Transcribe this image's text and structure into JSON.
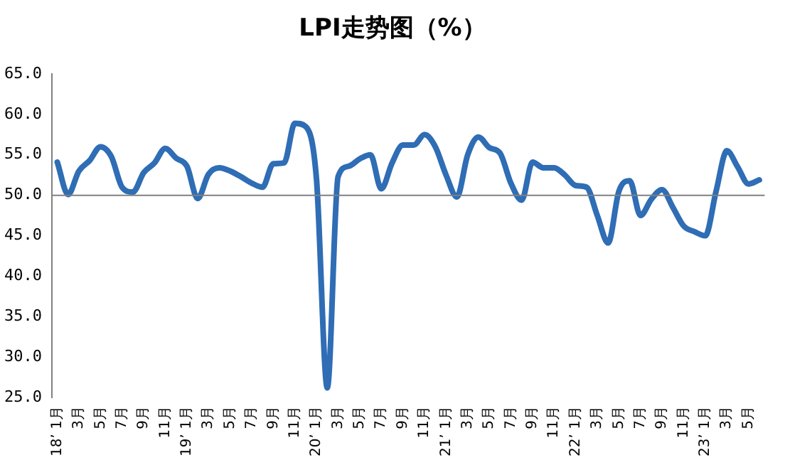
{
  "chart_data": {
    "type": "line",
    "title": "LPI走势图（%）",
    "categories": [
      "18’ 1月",
      null,
      "3月",
      null,
      "5月",
      null,
      "7月",
      null,
      "9月",
      null,
      "11月",
      null,
      "19’ 1月",
      null,
      "3月",
      null,
      "5月",
      null,
      "7月",
      null,
      "9月",
      null,
      "11月",
      null,
      "20’ 1月",
      null,
      "3月",
      null,
      "5月",
      null,
      "7月",
      null,
      "9月",
      null,
      "11月",
      null,
      "21’ 1月",
      null,
      "3月",
      null,
      "5月",
      null,
      "7月",
      null,
      "9月",
      null,
      "11月",
      null,
      "22’ 1月",
      null,
      "3月",
      null,
      "5月",
      null,
      "7月",
      null,
      "9月",
      null,
      "11月",
      null,
      "23’ 1月",
      null,
      "3月",
      null,
      "5月",
      null
    ],
    "series": [
      {
        "color": "#2f6db5",
        "values": [
          54.1,
          50.1,
          53.0,
          54.3,
          56.0,
          54.8,
          51.0,
          50.4,
          52.8,
          54.0,
          55.8,
          54.6,
          53.6,
          49.6,
          52.6,
          53.4,
          53.0,
          52.3,
          51.5,
          51.0,
          53.9,
          54.0,
          58.9,
          58.5,
          52.0,
          26.2,
          52.3,
          53.6,
          54.5,
          55.0,
          50.8,
          54.0,
          56.2,
          56.2,
          57.5,
          56.0,
          52.5,
          49.8,
          55.0,
          57.2,
          55.9,
          55.2,
          51.5,
          49.4,
          54.1,
          53.4,
          53.4,
          52.5,
          51.2,
          51.0,
          47.5,
          44.1,
          50.5,
          51.8,
          47.5,
          49.5,
          50.7,
          48.5,
          46.2,
          45.5,
          45.0,
          50.5,
          55.5,
          53.5,
          51.4,
          51.9
        ]
      }
    ],
    "ylim": [
      25,
      65
    ],
    "yticks": [
      {
        "value": 25,
        "label": "25.0"
      },
      {
        "value": 30,
        "label": "30.0"
      },
      {
        "value": 35,
        "label": "35.0"
      },
      {
        "value": 40,
        "label": "40.0"
      },
      {
        "value": 45,
        "label": "45.0"
      },
      {
        "value": 50,
        "label": "50.0"
      },
      {
        "value": 55,
        "label": "55.0"
      },
      {
        "value": 60,
        "label": "60.0"
      },
      {
        "value": 65,
        "label": "65.0"
      }
    ],
    "ref_lines": [
      {
        "axis": "y",
        "value": 50,
        "color": "#808080"
      }
    ],
    "grid": false,
    "legend": false,
    "marker": "none",
    "line_style": "solid"
  }
}
